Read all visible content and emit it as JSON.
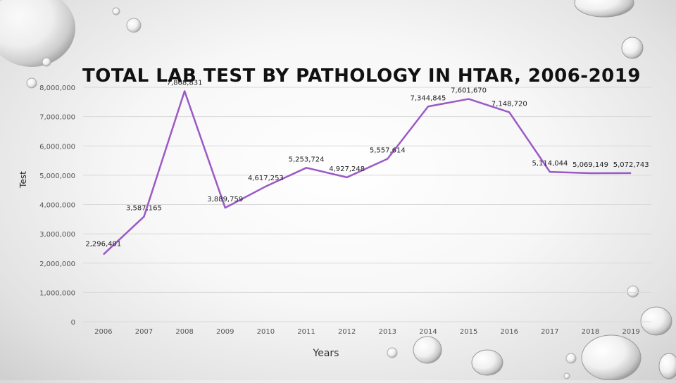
{
  "chart_data": {
    "type": "line",
    "title": "TOTAL LAB TEST BY PATHOLOGY IN HTAR, 2006-2019",
    "xlabel": "Years",
    "ylabel": "Test",
    "categories": [
      "2006",
      "2007",
      "2008",
      "2009",
      "2010",
      "2011",
      "2012",
      "2013",
      "2014",
      "2015",
      "2016",
      "2017",
      "2018",
      "2019"
    ],
    "values": [
      2296401,
      3587165,
      7868831,
      3889759,
      4617253,
      5253724,
      4927248,
      5557614,
      7344845,
      7601670,
      7148720,
      5114044,
      5069149,
      5072743
    ],
    "data_labels": [
      "2,296,401",
      "3,587,165",
      "7,868,831",
      "3,889,759",
      "4,617,253",
      "5,253,724",
      "4,927,248",
      "5,557,614",
      "7,344,845",
      "7,601,670",
      "7,148,720",
      "5,114,044",
      "5,069,149",
      "5,072,743"
    ],
    "yticks": [
      0,
      1000000,
      2000000,
      3000000,
      4000000,
      5000000,
      6000000,
      7000000,
      8000000
    ],
    "ytick_labels": [
      "0",
      "1,000,000",
      "2,000,000",
      "3,000,000",
      "4,000,000",
      "5,000,000",
      "6,000,000",
      "7,000,000",
      "8,000,000"
    ],
    "ylim": [
      0,
      8000000
    ],
    "grid": true,
    "legend": "none",
    "line_color": "#9b59c6"
  }
}
